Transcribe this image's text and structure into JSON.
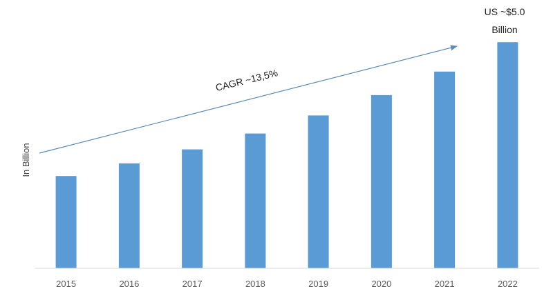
{
  "chart_data": {
    "type": "bar",
    "categories": [
      "2015",
      "2016",
      "2017",
      "2018",
      "2019",
      "2020",
      "2021",
      "2022"
    ],
    "values": [
      2.04,
      2.32,
      2.63,
      2.98,
      3.38,
      3.83,
      4.35,
      5.0
    ],
    "ylabel": "In Billion",
    "xlabel": "",
    "title": "",
    "ylim": [
      0,
      5.75
    ],
    "grid": false,
    "legend": "none",
    "bar_color": "#5b9bd5",
    "axis_color": "#d9d9d9",
    "annotations": {
      "cagr": "CAGR ~13,5%",
      "callout_line1": "US ~$5.0",
      "callout_line2": "Billion",
      "arrow_color": "#5b8bb5"
    }
  }
}
